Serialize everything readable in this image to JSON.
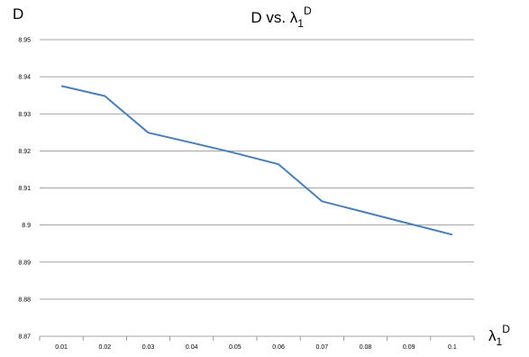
{
  "chart_data": {
    "type": "line",
    "title": "D vs. λ",
    "title_sub": "1",
    "title_sup": "D",
    "xlabel": "λ",
    "xlabel_sub": "1",
    "xlabel_sup": "D",
    "ylabel": "D",
    "x": [
      0.01,
      0.02,
      0.03,
      0.04,
      0.05,
      0.06,
      0.07,
      0.08,
      0.09,
      0.1
    ],
    "x_tick_labels": [
      "0.01",
      "0.02",
      "0.03",
      "0.04",
      "0.05",
      "0.06",
      "0.07",
      "0.08",
      "0.09",
      "0.1"
    ],
    "series": [
      {
        "values": [
          8.9375,
          8.9348,
          8.9249,
          8.9222,
          8.9194,
          8.9164,
          8.9064,
          8.9034,
          8.9004,
          8.8974
        ],
        "color": "#4a7ebb"
      }
    ],
    "ylim": [
      8.87,
      8.95
    ],
    "y_ticks": [
      8.87,
      8.88,
      8.89,
      8.9,
      8.91,
      8.92,
      8.93,
      8.94,
      8.95
    ],
    "y_tick_labels": [
      "8.87",
      "8.88",
      "8.89",
      "8.9",
      "8.91",
      "8.92",
      "8.93",
      "8.94",
      "8.95"
    ],
    "grid": true,
    "gridline_color": "#868686",
    "legend": "none"
  }
}
